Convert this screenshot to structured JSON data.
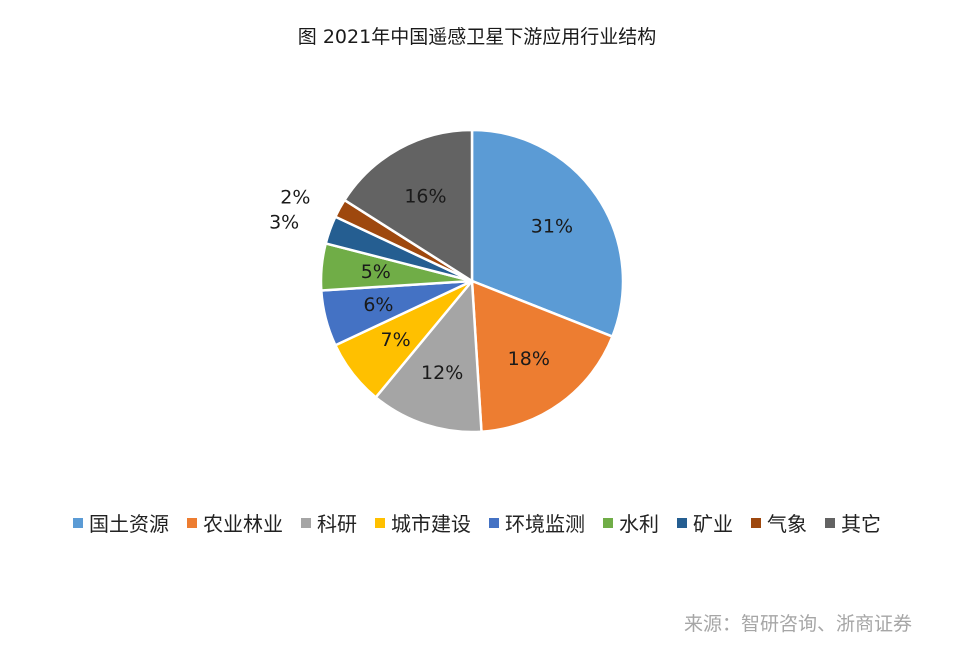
{
  "chart_data": {
    "type": "pie",
    "title": "图 2021年中国遥感卫星下游应用行业结构",
    "slices": [
      {
        "label": "国土资源",
        "value": 31,
        "display": "31%",
        "color": "#5B9BD5"
      },
      {
        "label": "农业林业",
        "value": 18,
        "display": "18%",
        "color": "#ED7D31"
      },
      {
        "label": "科研",
        "value": 12,
        "display": "12%",
        "color": "#A5A5A5"
      },
      {
        "label": "城市建设",
        "value": 7,
        "display": "7%",
        "color": "#FFC000"
      },
      {
        "label": "环境监测",
        "value": 6,
        "display": "6%",
        "color": "#4472C4"
      },
      {
        "label": "水利",
        "value": 5,
        "display": "5%",
        "color": "#70AD47"
      },
      {
        "label": "矿业",
        "value": 3,
        "display": "3%",
        "color": "#255E91"
      },
      {
        "label": "气象",
        "value": 2,
        "display": "2%",
        "color": "#9E480E"
      },
      {
        "label": "其它",
        "value": 16,
        "display": "16%",
        "color": "#636363"
      }
    ],
    "legend_position": "bottom"
  },
  "source": "来源：智研咨询、浙商证券"
}
